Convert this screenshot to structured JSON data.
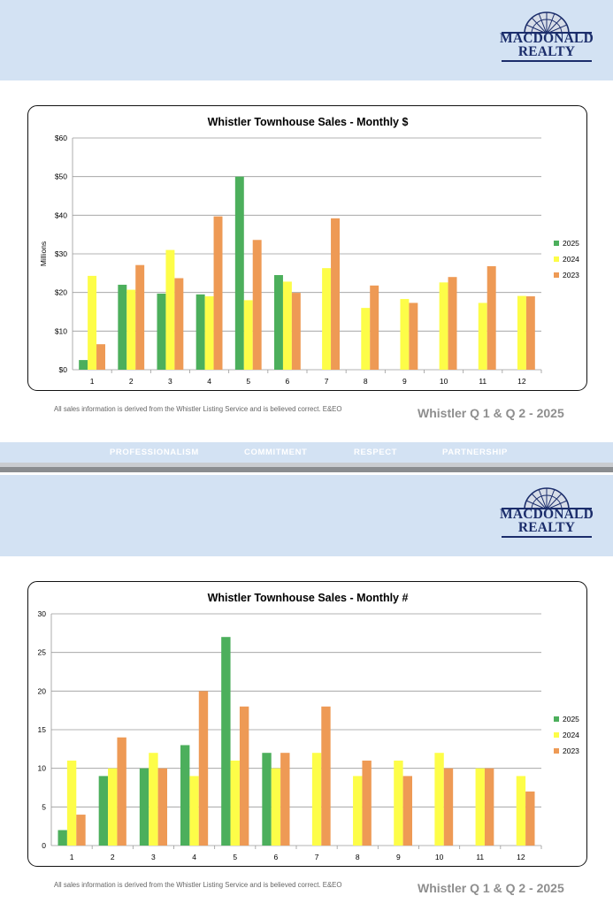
{
  "brand": {
    "line1": "MACDONALD",
    "line2": "REALTY"
  },
  "footer": {
    "items": [
      "PROFESSIONALISM",
      "COMMITMENT",
      "RESPECT",
      "PARTNERSHIP"
    ]
  },
  "pages": [
    {
      "note": "All sales information is derived from the Whistler Listing Service and is believed correct. E&EO",
      "quarter": "Whistler Q 1 & Q 2 - 2025"
    },
    {
      "note": "All sales information is derived from the Whistler Listing Service and is believed correct. E&EO",
      "quarter": "Whistler Q 1 & Q 2 - 2025"
    }
  ],
  "colors": {
    "2025": "#4caf5c",
    "2024": "#fdfd48",
    "2023": "#ee9a55",
    "band": "#d3e2f3",
    "brand": "#1b2d6b"
  },
  "chart_data": [
    {
      "type": "bar",
      "title": "Whistler Townhouse Sales - Monthly $",
      "xlabel": "",
      "ylabel": "Millions",
      "categories": [
        "1",
        "2",
        "3",
        "4",
        "5",
        "6",
        "7",
        "8",
        "9",
        "10",
        "11",
        "12"
      ],
      "ylim": [
        0,
        60
      ],
      "yticks": [
        0,
        10,
        20,
        30,
        40,
        50,
        60
      ],
      "ytick_labels": [
        "$0",
        "$10",
        "$20",
        "$30",
        "$40",
        "$50",
        "$60"
      ],
      "grid": true,
      "legend": "right",
      "series": [
        {
          "name": "2025",
          "values": [
            2.5,
            22,
            19.7,
            19.5,
            50,
            24.5,
            null,
            null,
            null,
            null,
            null,
            null
          ]
        },
        {
          "name": "2024",
          "values": [
            24.3,
            20.7,
            31,
            19,
            18,
            22.8,
            26.3,
            16,
            18.3,
            22.6,
            17.3,
            19.1
          ]
        },
        {
          "name": "2023",
          "values": [
            6.6,
            27.1,
            23.7,
            39.7,
            33.6,
            19.9,
            39.2,
            21.8,
            17.3,
            24,
            26.8,
            19
          ]
        }
      ]
    },
    {
      "type": "bar",
      "title": "Whistler Townhouse Sales - Monthly #",
      "xlabel": "",
      "ylabel": "",
      "categories": [
        "1",
        "2",
        "3",
        "4",
        "5",
        "6",
        "7",
        "8",
        "9",
        "10",
        "11",
        "12"
      ],
      "ylim": [
        0,
        30
      ],
      "yticks": [
        0,
        5,
        10,
        15,
        20,
        25,
        30
      ],
      "ytick_labels": [
        "0",
        "5",
        "10",
        "15",
        "20",
        "25",
        "30"
      ],
      "grid": true,
      "legend": "right",
      "series": [
        {
          "name": "2025",
          "values": [
            2,
            9,
            10,
            13,
            27,
            12,
            null,
            null,
            null,
            null,
            null,
            null
          ]
        },
        {
          "name": "2024",
          "values": [
            11,
            10,
            12,
            9,
            11,
            10,
            12,
            9,
            11,
            12,
            10,
            9
          ]
        },
        {
          "name": "2023",
          "values": [
            4,
            14,
            10,
            20,
            18,
            12,
            18,
            11,
            9,
            10,
            10,
            7
          ]
        }
      ]
    }
  ]
}
